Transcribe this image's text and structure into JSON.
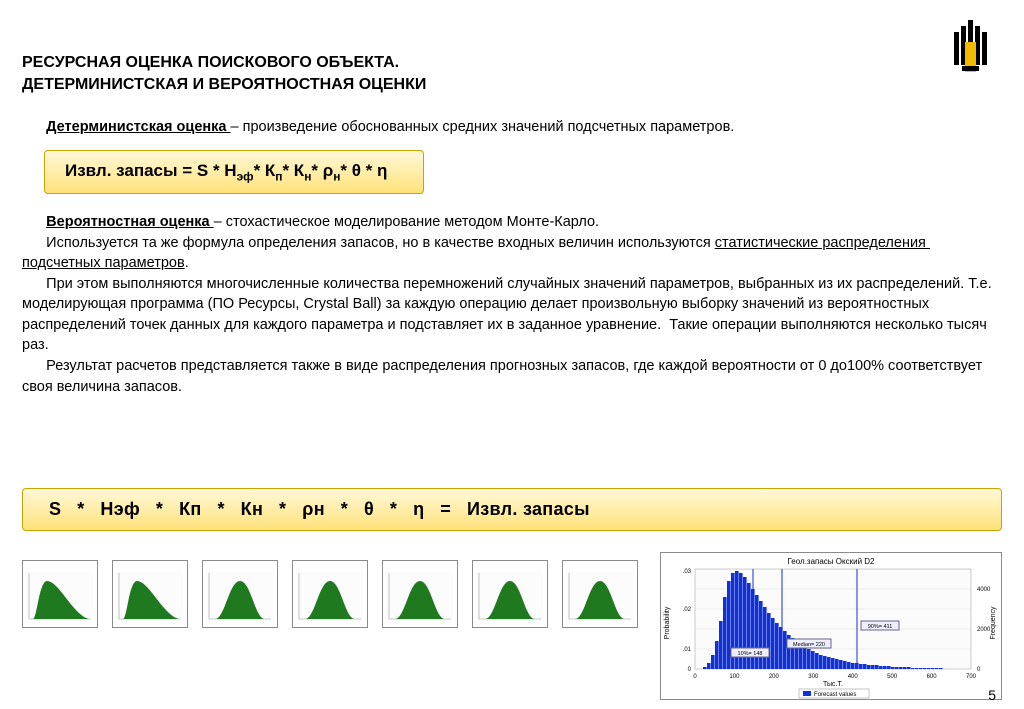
{
  "title_line1": "РЕСУРСНАЯ ОЦЕНКА ПОИСКОВОГО ОБЪЕКТА.",
  "title_line2": "ДЕТЕРМИНИСТСКАЯ И ВЕРОЯТНОСТНАЯ ОЦЕНКИ",
  "det_label": "Детерминистская оценка ",
  "det_text": "– произведение обоснованных средних значений подсчетных параметров.",
  "formula1": "Извл. запасы = S * Hэф* Kп* Kн* ρн* θ * η",
  "prob_html": "<span class='u'><b>Вероятностная оценка </b></span>– стохастическое моделирование методом Монте-Карло.<br>&nbsp;&nbsp;&nbsp;&nbsp;&nbsp;&nbsp;Используется та же формула определения запасов, но в качестве входных величин используются <span class='u'>статистические распределения&nbsp; подсчетных параметров</span>.<br>&nbsp;&nbsp;&nbsp;&nbsp;&nbsp;&nbsp;При этом выполняются многочисленные количества перемножений случайных значений параметров, выбранных из их распределений. Т.е. моделирующая программа (ПО Ресурсы, Crystal Ball) за каждую операцию делает произвольную выборку значений из вероятностных распределений точек данных для каждого параметра и подставляет их в заданное уравнение.&nbsp; Такие операции выполняются несколько тысяч раз.<br>&nbsp;&nbsp;&nbsp;&nbsp;&nbsp;&nbsp;Результат расчетов представляется также в виде распределения прогнозных запасов, где каждой вероятности от 0 до100% соответствует своя величина запасов.",
  "formula2": "S &nbsp; *&nbsp;&nbsp; Нэф &nbsp;&nbsp;*&nbsp;&nbsp; Кп &nbsp;&nbsp;*&nbsp;&nbsp; Кн &nbsp;&nbsp;*&nbsp;&nbsp; ρн &nbsp;&nbsp;*&nbsp;&nbsp; θ &nbsp;&nbsp;*&nbsp;&nbsp; η &nbsp;&nbsp;=&nbsp;&nbsp; Извл. запасы",
  "page_number": "5",
  "thumbs": [
    {
      "shape": "lognorm"
    },
    {
      "shape": "lognorm"
    },
    {
      "shape": "normal"
    },
    {
      "shape": "normal"
    },
    {
      "shape": "normal"
    },
    {
      "shape": "normal"
    },
    {
      "shape": "normal"
    }
  ],
  "thumb_fill": "#1f7a1f",
  "big_chart": {
    "title": "Геол.запасы  Окский D2",
    "xlabel": "Тыс.Т.",
    "ylabel_left": "Probability",
    "ylabel_right": "Frequency",
    "legend": "Forecast values",
    "bar_color": "#1030d8",
    "marker_labels": [
      "10%= 148",
      "Median= 220",
      "90%= 411"
    ],
    "xlim": [
      0,
      700
    ],
    "xtick_step": 100
  },
  "colors": {
    "formula_bg_top": "#fff8d8",
    "formula_bg_bottom": "#ffe27a",
    "formula_border": "#c9a400",
    "logo_black": "#000000",
    "logo_yellow": "#f2b900"
  }
}
